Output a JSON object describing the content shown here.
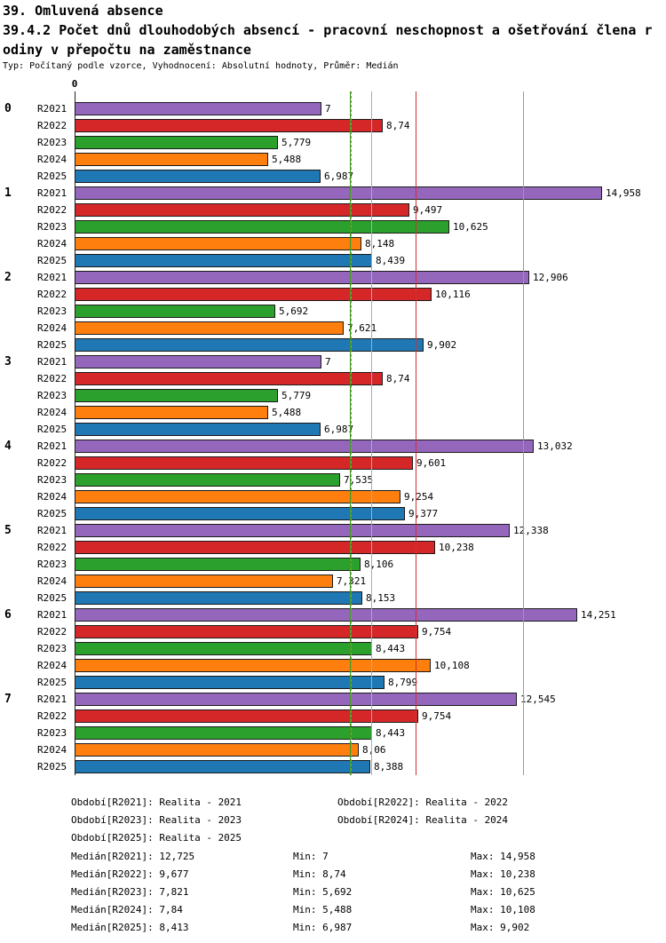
{
  "title": {
    "line1": "39. Omluvená absence",
    "line2a": "39.4.2 Počet dnů dlouhodobých absencí - pracovní neschopnost a ošetřování člena r",
    "line2b": "odiny v přepočtu na zaměstnance",
    "line3": "Typ: Počítaný podle vzorce, Vyhodnocení: Absolutní hodnoty, Průměr: Medián"
  },
  "chart_data": {
    "type": "bar",
    "orientation": "horizontal",
    "title": "39.4.2 Počet dnů dlouhodobých absencí - pracovní neschopnost a ošetřování člena rodiny v přepočtu na zaměstnance",
    "xlabel": "",
    "ylabel": "",
    "xlim": [
      0,
      15.5
    ],
    "x_ticks": [
      "0"
    ],
    "grid": false,
    "series": [
      {
        "name": "R2021",
        "label": "Realita - 2021",
        "color": "#9467bd",
        "median": 12.725,
        "min": 7,
        "max": 14.958
      },
      {
        "name": "R2022",
        "label": "Realita - 2022",
        "color": "#d62728",
        "median": 9.677,
        "min": 8.74,
        "max": 10.238
      },
      {
        "name": "R2023",
        "label": "Realita - 2023",
        "color": "#2ca02c",
        "median": 7.821,
        "min": 5.692,
        "max": 10.625
      },
      {
        "name": "R2024",
        "label": "Realita - 2024",
        "color": "#ff7f0e",
        "median": 7.84,
        "min": 5.488,
        "max": 10.108
      },
      {
        "name": "R2025",
        "label": "Realita - 2025",
        "color": "#1f77b4",
        "median": 8.413,
        "min": 6.987,
        "max": 9.902
      }
    ],
    "groups": [
      {
        "label": "0",
        "bars": [
          {
            "series": "R2021",
            "value": 7,
            "display": "7"
          },
          {
            "series": "R2022",
            "value": 8.74,
            "display": "8,74"
          },
          {
            "series": "R2023",
            "value": 5.779,
            "display": "5,779"
          },
          {
            "series": "R2024",
            "value": 5.488,
            "display": "5,488"
          },
          {
            "series": "R2025",
            "value": 6.987,
            "display": "6,987"
          }
        ]
      },
      {
        "label": "1",
        "bars": [
          {
            "series": "R2021",
            "value": 14.958,
            "display": "14,958"
          },
          {
            "series": "R2022",
            "value": 9.497,
            "display": "9,497"
          },
          {
            "series": "R2023",
            "value": 10.625,
            "display": "10,625"
          },
          {
            "series": "R2024",
            "value": 8.148,
            "display": "8,148"
          },
          {
            "series": "R2025",
            "value": 8.439,
            "display": "8,439"
          }
        ]
      },
      {
        "label": "2",
        "bars": [
          {
            "series": "R2021",
            "value": 12.906,
            "display": "12,906"
          },
          {
            "series": "R2022",
            "value": 10.116,
            "display": "10,116"
          },
          {
            "series": "R2023",
            "value": 5.692,
            "display": "5,692"
          },
          {
            "series": "R2024",
            "value": 7.621,
            "display": "7,621"
          },
          {
            "series": "R2025",
            "value": 9.902,
            "display": "9,902"
          }
        ]
      },
      {
        "label": "3",
        "bars": [
          {
            "series": "R2021",
            "value": 7,
            "display": "7"
          },
          {
            "series": "R2022",
            "value": 8.74,
            "display": "8,74"
          },
          {
            "series": "R2023",
            "value": 5.779,
            "display": "5,779"
          },
          {
            "series": "R2024",
            "value": 5.488,
            "display": "5,488"
          },
          {
            "series": "R2025",
            "value": 6.987,
            "display": "6,987"
          }
        ]
      },
      {
        "label": "4",
        "bars": [
          {
            "series": "R2021",
            "value": 13.032,
            "display": "13,032"
          },
          {
            "series": "R2022",
            "value": 9.601,
            "display": "9,601"
          },
          {
            "series": "R2023",
            "value": 7.535,
            "display": "7,535"
          },
          {
            "series": "R2024",
            "value": 9.254,
            "display": "9,254"
          },
          {
            "series": "R2025",
            "value": 9.377,
            "display": "9,377"
          }
        ]
      },
      {
        "label": "5",
        "bars": [
          {
            "series": "R2021",
            "value": 12.338,
            "display": "12,338"
          },
          {
            "series": "R2022",
            "value": 10.238,
            "display": "10,238"
          },
          {
            "series": "R2023",
            "value": 8.106,
            "display": "8,106"
          },
          {
            "series": "R2024",
            "value": 7.321,
            "display": "7,321"
          },
          {
            "series": "R2025",
            "value": 8.153,
            "display": "8,153"
          }
        ]
      },
      {
        "label": "6",
        "bars": [
          {
            "series": "R2021",
            "value": 14.251,
            "display": "14,251"
          },
          {
            "series": "R2022",
            "value": 9.754,
            "display": "9,754"
          },
          {
            "series": "R2023",
            "value": 8.443,
            "display": "8,443"
          },
          {
            "series": "R2024",
            "value": 10.108,
            "display": "10,108"
          },
          {
            "series": "R2025",
            "value": 8.799,
            "display": "8,799"
          }
        ]
      },
      {
        "label": "7",
        "bars": [
          {
            "series": "R2021",
            "value": 12.545,
            "display": "12,545"
          },
          {
            "series": "R2022",
            "value": 9.754,
            "display": "9,754"
          },
          {
            "series": "R2023",
            "value": 8.443,
            "display": "8,443"
          },
          {
            "series": "R2024",
            "value": 8.06,
            "display": "8,06"
          },
          {
            "series": "R2025",
            "value": 8.388,
            "display": "8,388"
          }
        ]
      }
    ],
    "median_lines": [
      {
        "series": "R2021",
        "value": 12.725,
        "color": "#a78cc9",
        "style": "solid"
      },
      {
        "series": "R2022",
        "value": 9.677,
        "color": "#d03030",
        "style": "solid"
      },
      {
        "series": "R2023",
        "value": 7.821,
        "color": "#2ca02c",
        "style": "solid"
      },
      {
        "series": "R2024",
        "value": 7.84,
        "color": "#c8860a",
        "style": "dashed"
      },
      {
        "series": "R2025",
        "value": 8.413,
        "color": "#85b8d8",
        "style": "solid"
      }
    ]
  },
  "legend": {
    "periods": [
      "Období[R2021]: Realita - 2021",
      "Období[R2022]: Realita - 2022",
      "Období[R2023]: Realita - 2023",
      "Období[R2024]: Realita - 2024",
      "Období[R2025]: Realita - 2025"
    ],
    "stats": [
      {
        "median": "Medián[R2021]: 12,725",
        "min": "Min: 7",
        "max": "Max: 14,958"
      },
      {
        "median": "Medián[R2022]: 9,677",
        "min": "Min: 8,74",
        "max": "Max: 10,238"
      },
      {
        "median": "Medián[R2023]: 7,821",
        "min": "Min: 5,692",
        "max": "Max: 10,625"
      },
      {
        "median": "Medián[R2024]: 7,84",
        "min": "Min: 5,488",
        "max": "Max: 10,108"
      },
      {
        "median": "Medián[R2025]: 8,413",
        "min": "Min: 6,987",
        "max": "Max: 9,902"
      }
    ]
  }
}
